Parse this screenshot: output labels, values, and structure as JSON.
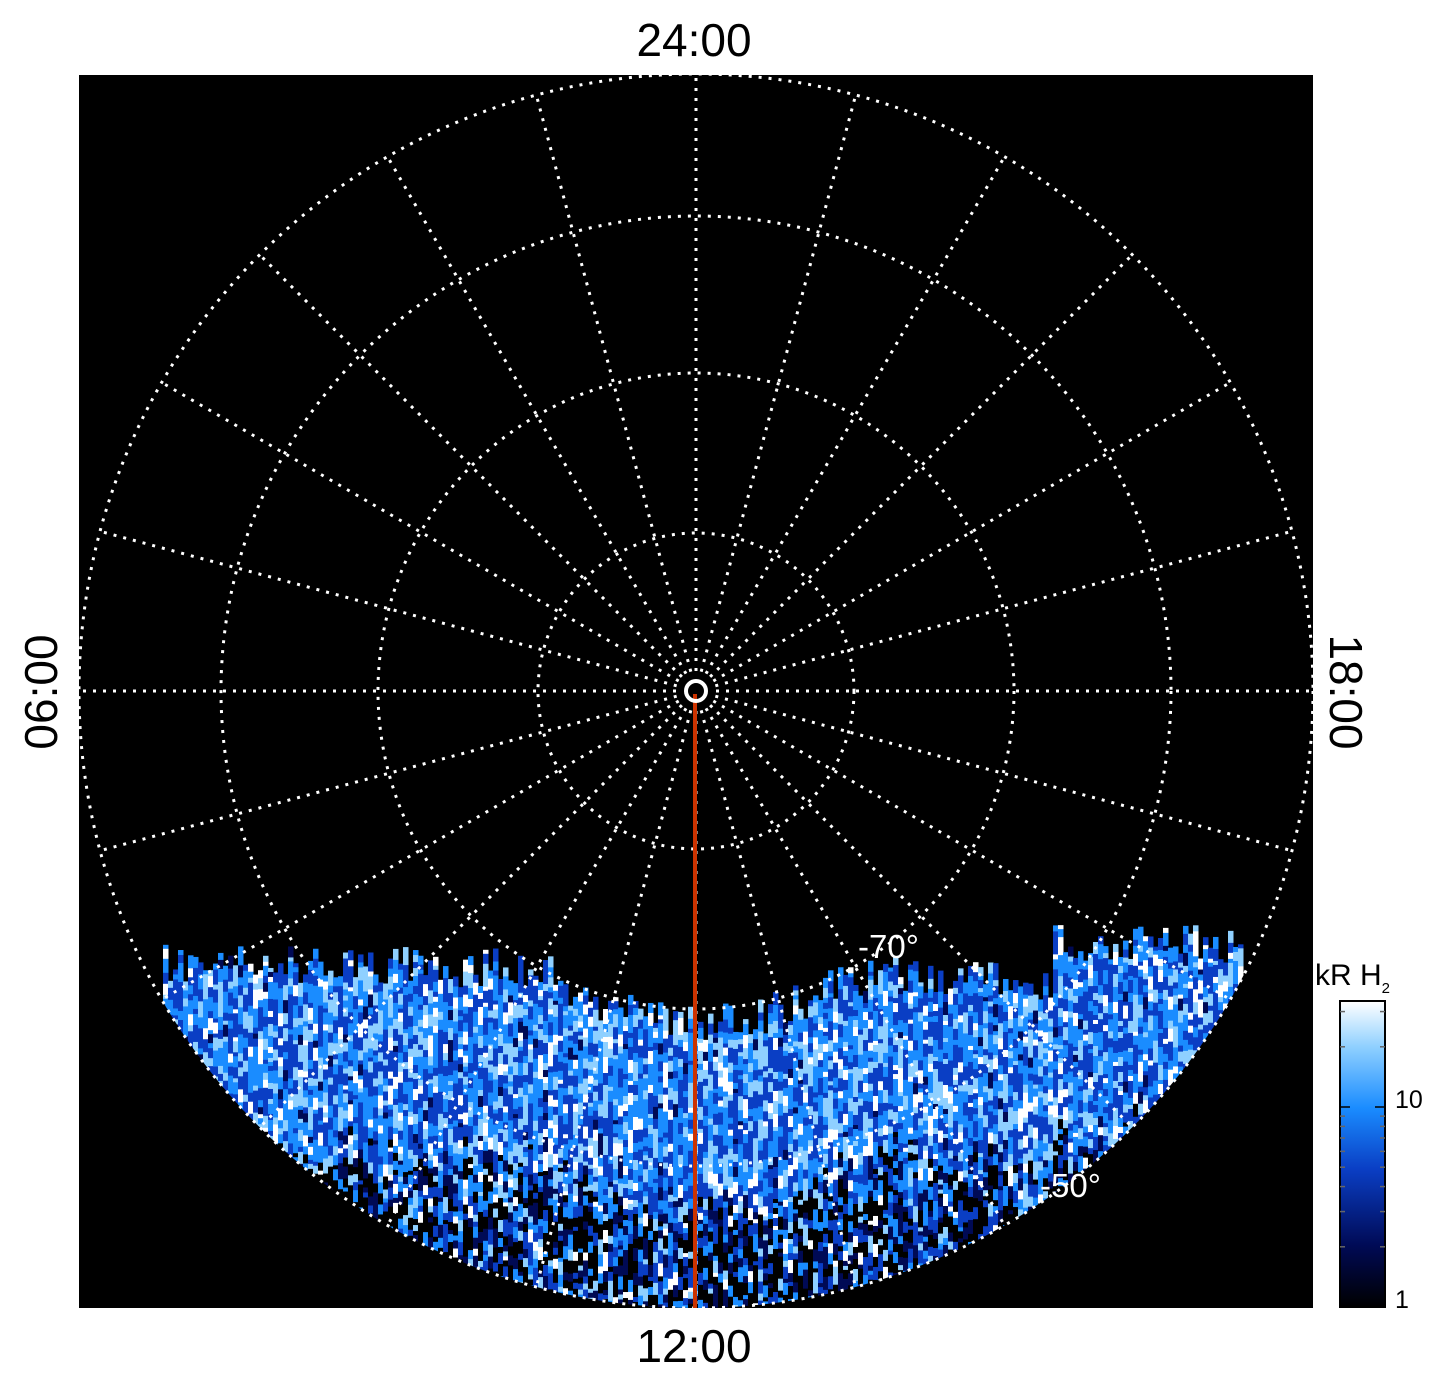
{
  "local_time_labels": {
    "top": "24:00",
    "bottom": "12:00",
    "left": "06:00",
    "right": "18:00"
  },
  "latitude_labels": {
    "inner": "-70°",
    "outer": "-50°"
  },
  "colorbar": {
    "title": "kR H",
    "title_subscript": "2",
    "ticks": [
      "10",
      "1"
    ],
    "scale": "log",
    "colors": [
      "#000000",
      "#000a55",
      "#0a3ec4",
      "#1a8cff",
      "#8fd0ff",
      "#ffffff"
    ]
  },
  "colors": {
    "background": "#000000",
    "grid": "#ffffff",
    "noon_meridian": "#cc3300"
  }
}
